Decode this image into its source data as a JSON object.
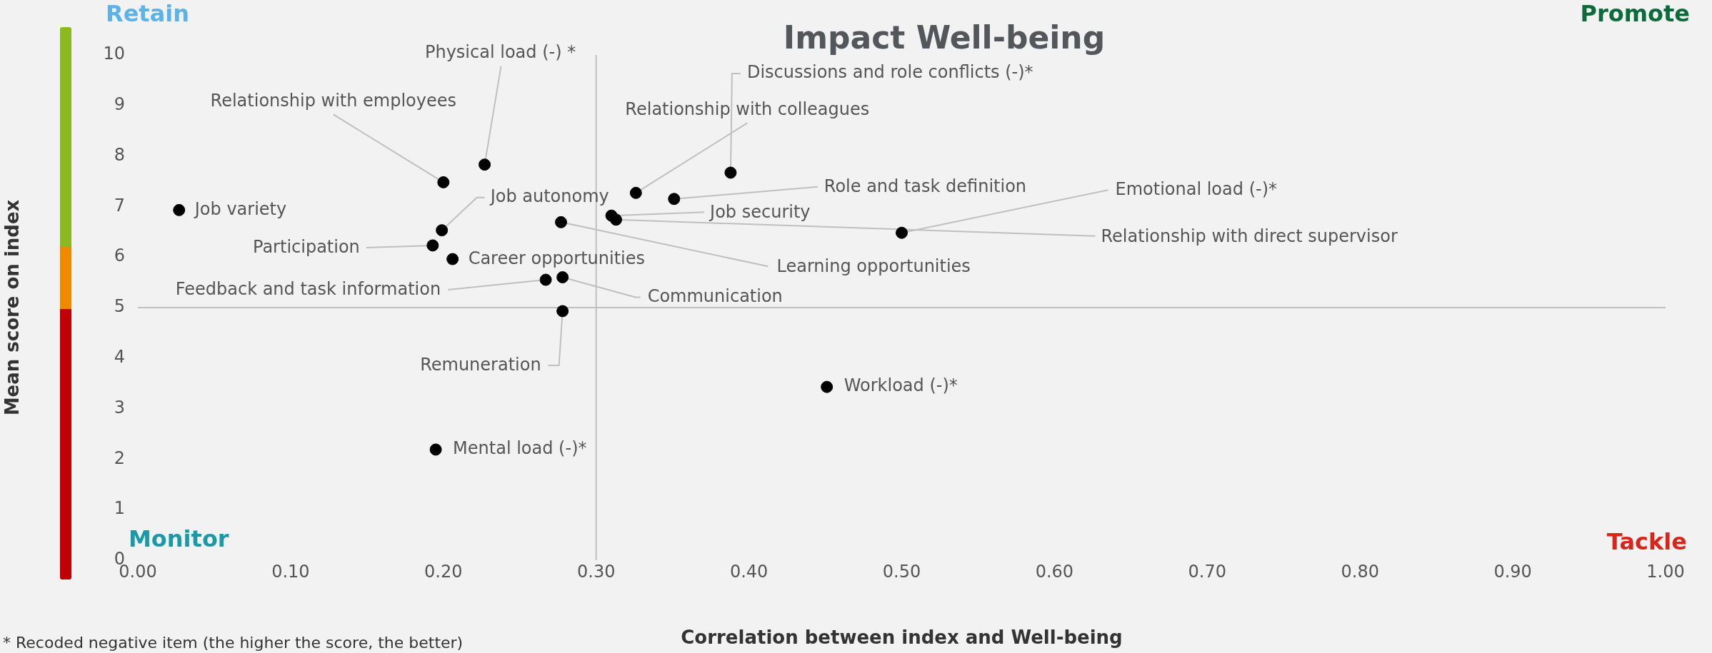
{
  "chart_data": {
    "type": "scatter",
    "title": "Impact Well-being",
    "xlabel": "Correlation between index and Well-being",
    "ylabel": "Mean score on index",
    "x": [
      0.027,
      0.2,
      0.227,
      0.199,
      0.193,
      0.206,
      0.267,
      0.278,
      0.278,
      0.277,
      0.326,
      0.388,
      0.351,
      0.31,
      0.313,
      0.5,
      0.195,
      0.451
    ],
    "series": [
      {
        "color": "#000000",
        "values": [
          6.93,
          7.48,
          7.83,
          6.53,
          6.23,
          5.96,
          5.55,
          5.6,
          4.93,
          6.69,
          7.27,
          7.67,
          7.15,
          6.82,
          6.74,
          6.48,
          2.19,
          3.43
        ]
      }
    ],
    "xlim": [
      0,
      1
    ],
    "ylim": [
      0,
      10
    ],
    "xticks": [
      {
        "value": 0,
        "label": "0.00"
      },
      {
        "value": 0.1,
        "label": "0.10"
      },
      {
        "value": 0.2,
        "label": "0.20"
      },
      {
        "value": 0.3,
        "label": "0.30"
      },
      {
        "value": 0.4,
        "label": "0.40"
      },
      {
        "value": 0.5,
        "label": "0.50"
      },
      {
        "value": 0.6,
        "label": "0.60"
      },
      {
        "value": 0.7,
        "label": "0.70"
      },
      {
        "value": 0.8,
        "label": "0.80"
      },
      {
        "value": 0.9,
        "label": "0.90"
      },
      {
        "value": 1,
        "label": "1.00"
      }
    ],
    "yticks": [
      0,
      1,
      2,
      3,
      4,
      5,
      6,
      7,
      8,
      9,
      10
    ],
    "ref_lines": [
      {
        "axis": "x",
        "value": 0.3,
        "color": "#c0c0c0"
      },
      {
        "axis": "y",
        "value": 5,
        "color": "#c0c0c0"
      }
    ],
    "grid": false,
    "legend": false,
    "marker": "circle",
    "annotations": [
      "Retain",
      "Promote",
      "Monitor",
      "Tackle",
      "* Recoded negative item (the higher the score, the better)",
      {
        "text": "Job variety",
        "x": 0.027,
        "y": 6.93
      },
      {
        "text": "Relationship with employees",
        "x": 0.2,
        "y": 7.48
      },
      {
        "text": "Physical load (-) *",
        "x": 0.227,
        "y": 7.83
      },
      {
        "text": "Job autonomy",
        "x": 0.199,
        "y": 6.53
      },
      {
        "text": "Participation",
        "x": 0.193,
        "y": 6.23
      },
      {
        "text": "Career opportunities",
        "x": 0.206,
        "y": 5.96
      },
      {
        "text": "Feedback and task information",
        "x": 0.267,
        "y": 5.55
      },
      {
        "text": "Communication",
        "x": 0.278,
        "y": 5.6
      },
      {
        "text": "Remuneration",
        "x": 0.278,
        "y": 4.93
      },
      {
        "text": "Learning opportunities",
        "x": 0.277,
        "y": 6.69
      },
      {
        "text": "Relationship with colleagues",
        "x": 0.326,
        "y": 7.27
      },
      {
        "text": "Discussions and role conflicts (-)*",
        "x": 0.388,
        "y": 7.67
      },
      {
        "text": "Role and task definition",
        "x": 0.351,
        "y": 7.15
      },
      {
        "text": "Job security",
        "x": 0.31,
        "y": 6.82
      },
      {
        "text": "Relationship with direct supervisor",
        "x": 0.313,
        "y": 6.74
      },
      {
        "text": "Emotional load (-)*",
        "x": 0.5,
        "y": 6.48
      },
      {
        "text": "Mental load (-)*",
        "x": 0.195,
        "y": 2.19
      },
      {
        "text": "Workload (-)*",
        "x": 0.451,
        "y": 3.43
      }
    ]
  }
}
